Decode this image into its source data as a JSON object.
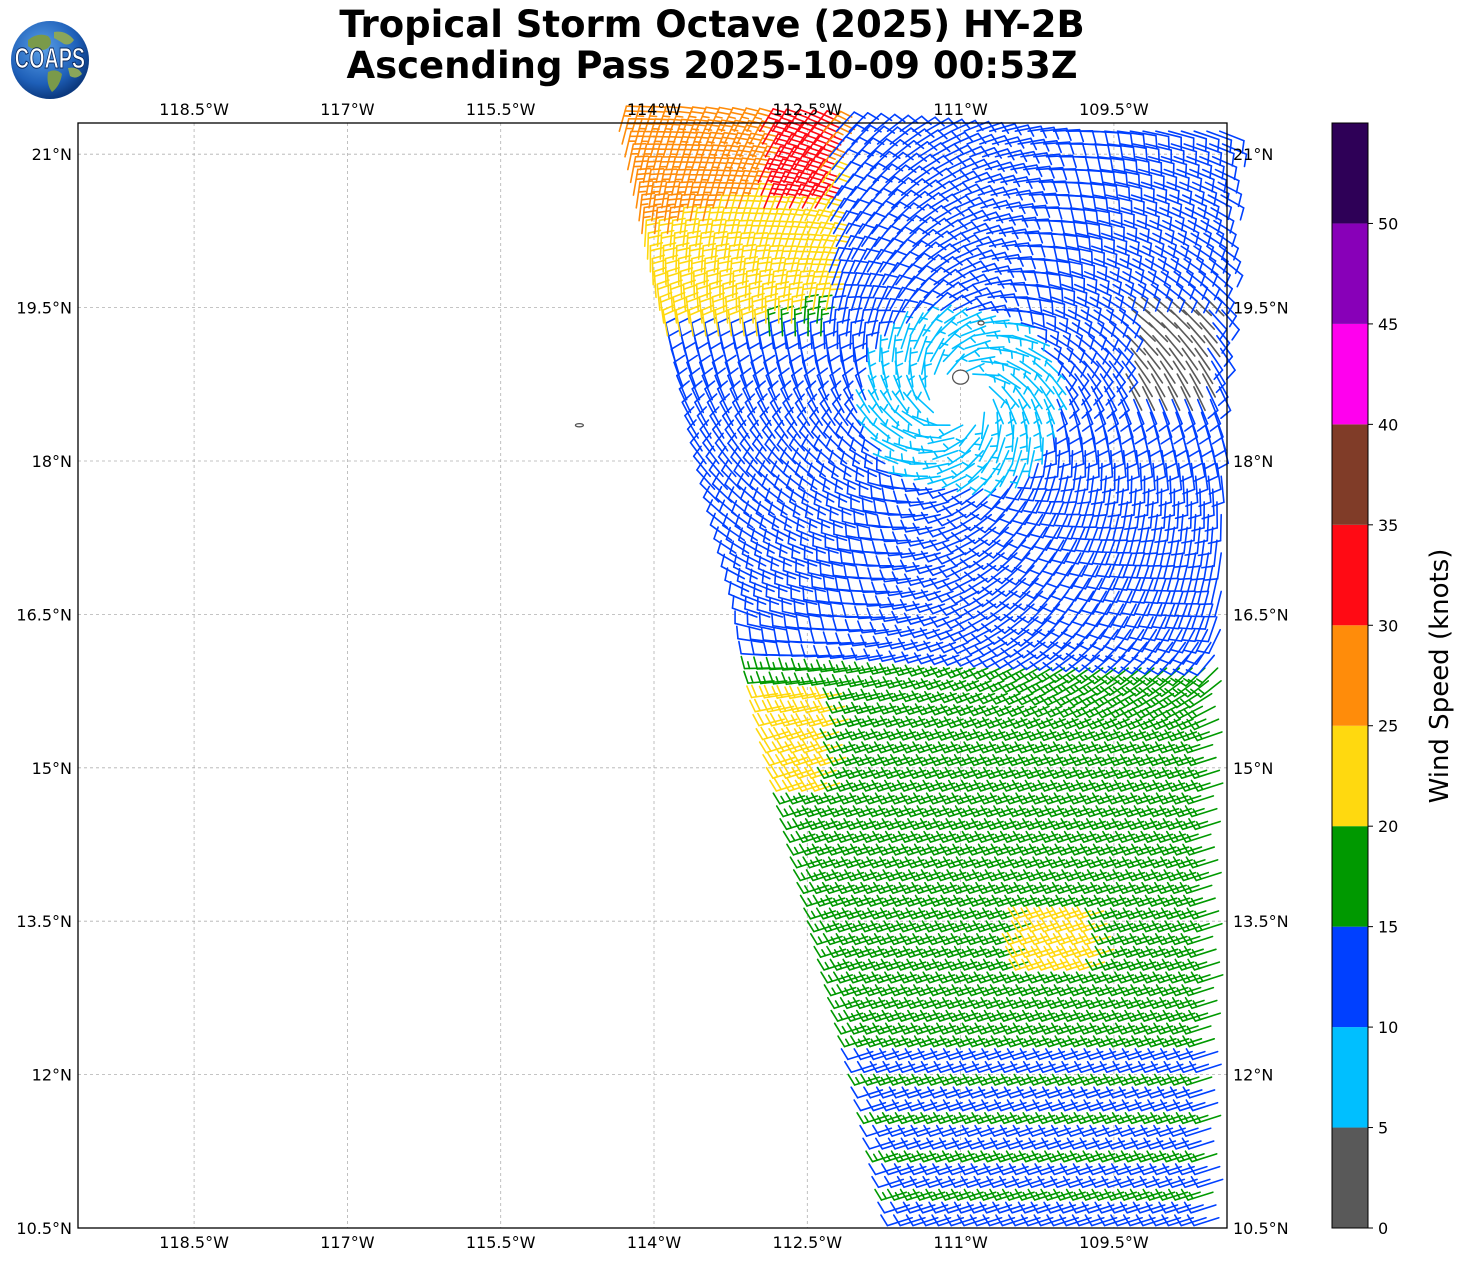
{
  "title": {
    "line1": "Tropical Storm Octave (2025) HY-2B",
    "line2": "Ascending Pass 2025-10-09 00:53Z"
  },
  "logo": {
    "text": "COAPS",
    "icon": "globe-icon"
  },
  "map": {
    "lon_range": [
      -120.25,
      -108.25
    ],
    "lat_range": [
      10.5,
      21.7
    ],
    "lon_ticks": [
      {
        "value": -118.5,
        "label": "118.5°W"
      },
      {
        "value": -117.0,
        "label": "117°W"
      },
      {
        "value": -115.5,
        "label": "115.5°W"
      },
      {
        "value": -114.0,
        "label": "114°W"
      },
      {
        "value": -112.5,
        "label": "112.5°W"
      },
      {
        "value": -111.0,
        "label": "111°W"
      },
      {
        "value": -109.5,
        "label": "109.5°W"
      }
    ],
    "lat_ticks": [
      {
        "value": 21.0,
        "label": "21°N"
      },
      {
        "value": 19.5,
        "label": "19.5°N"
      },
      {
        "value": 18.0,
        "label": "18°N"
      },
      {
        "value": 16.5,
        "label": "16.5°N"
      },
      {
        "value": 15.0,
        "label": "15°N"
      },
      {
        "value": 13.5,
        "label": "13.5°N"
      },
      {
        "value": 12.0,
        "label": "12°N"
      },
      {
        "value": 10.5,
        "label": "10.5°N"
      }
    ],
    "grid": true,
    "storm_center": {
      "lon": -111.0,
      "lat": 18.6
    },
    "islands": [
      {
        "lon": -111.0,
        "lat": 18.82
      },
      {
        "lon": -110.8,
        "lat": 19.35
      },
      {
        "lon": -114.73,
        "lat": 18.35
      }
    ],
    "swath_left_edge": [
      {
        "lat": 21.5,
        "lon": -114.4
      },
      {
        "lat": 19.6,
        "lon": -113.98
      },
      {
        "lat": 18.0,
        "lon": -113.5
      },
      {
        "lat": 16.5,
        "lon": -113.0
      },
      {
        "lat": 15.0,
        "lon": -112.6
      },
      {
        "lat": 13.5,
        "lon": -112.2
      },
      {
        "lat": 12.0,
        "lon": -111.8
      },
      {
        "lat": 10.5,
        "lon": -111.45
      }
    ],
    "yellow_patch": {
      "lon": -109.9,
      "lat": 13.35
    }
  },
  "colorbar": {
    "label": "Wind Speed (knots)",
    "colors": [
      "#595959",
      "#00bfff",
      "#0040ff",
      "#009900",
      "#ffd90f",
      "#ff8c0a",
      "#ff0a14",
      "#803c28",
      "#ff00ee",
      "#8800b8",
      "#2e0057"
    ],
    "bounds": [
      0,
      5,
      10,
      15,
      20,
      25,
      30,
      35,
      40,
      45,
      50,
      55
    ],
    "tick_values": [
      0,
      5,
      10,
      15,
      20,
      25,
      30,
      35,
      40,
      45,
      50
    ]
  },
  "colors": {
    "grid": "#b0b0b0",
    "coast": "#555555",
    "frame": "#000000"
  }
}
